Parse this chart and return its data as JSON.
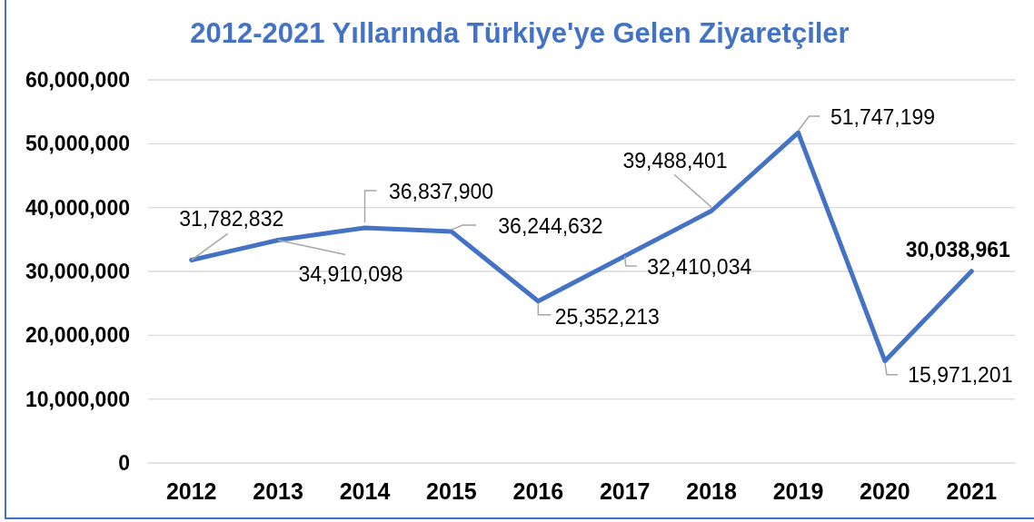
{
  "chart_data": {
    "type": "line",
    "title": "2012-2021 Yıllarında Türkiye'ye Gelen Ziyaretçiler",
    "categories": [
      "2012",
      "2013",
      "2014",
      "2015",
      "2016",
      "2017",
      "2018",
      "2019",
      "2020",
      "2021"
    ],
    "series": [
      {
        "color": "#4472c4",
        "values": [
          31782832,
          34910098,
          36837900,
          36244632,
          25352213,
          32410034,
          39488401,
          51747199,
          15971201,
          30038961
        ],
        "value_labels": [
          "31,782,832",
          "34,910,098",
          "36,837,900",
          "36,244,632",
          "25,352,213",
          "32,410,034",
          "39,488,401",
          "51,747,199",
          "15,971,201",
          "30,038,961"
        ]
      }
    ],
    "ylim": [
      0,
      60000000
    ],
    "yticks": [
      {
        "value": 0,
        "label": "0"
      },
      {
        "value": 10000000,
        "label": "10,000,000"
      },
      {
        "value": 20000000,
        "label": "20,000,000"
      },
      {
        "value": 30000000,
        "label": "30,000,000"
      },
      {
        "value": 40000000,
        "label": "40,000,000"
      },
      {
        "value": 50000000,
        "label": "50,000,000"
      },
      {
        "value": 60000000,
        "label": "60,000,000"
      }
    ],
    "grid": "y"
  }
}
